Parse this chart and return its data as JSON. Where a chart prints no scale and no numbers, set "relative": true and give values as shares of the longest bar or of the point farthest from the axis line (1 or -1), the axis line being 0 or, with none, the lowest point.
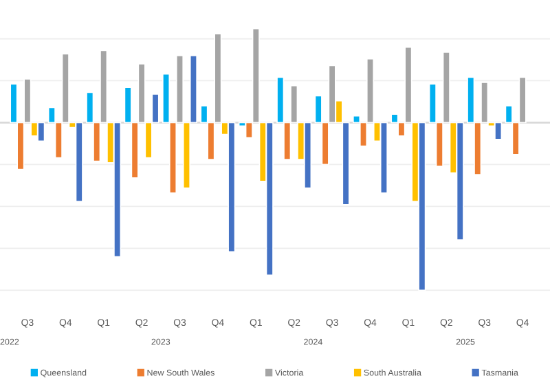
{
  "chart_data": {
    "type": "bar",
    "relative": true,
    "grid": "y",
    "legend": "bottom",
    "categories": [
      "Q3",
      "Q4",
      "Q1",
      "Q2",
      "Q3",
      "Q4",
      "Q1",
      "Q2",
      "Q3",
      "Q4",
      "Q1",
      "Q2",
      "Q3",
      "Q4"
    ],
    "annotations": [
      "2022",
      "2023",
      "2024",
      "2025"
    ],
    "series": [
      {
        "name": "Queensland",
        "color": "#00b0f0",
        "values": [
          0.23,
          0.09,
          0.18,
          0.21,
          0.29,
          0.1,
          -0.02,
          0.27,
          0.16,
          0.04,
          0.05,
          0.23,
          0.27,
          0.1
        ]
      },
      {
        "name": "New South Wales",
        "color": "#ed7d31",
        "values": [
          -0.28,
          -0.21,
          -0.23,
          -0.33,
          -0.42,
          -0.22,
          -0.09,
          -0.22,
          -0.25,
          -0.14,
          -0.08,
          -0.26,
          -0.31,
          -0.19
        ]
      },
      {
        "name": "Victoria",
        "color": "#a5a5a5",
        "values": [
          0.26,
          0.41,
          0.43,
          0.35,
          0.4,
          0.53,
          0.56,
          0.22,
          0.34,
          0.38,
          0.45,
          0.42,
          0.24,
          0.27
        ]
      },
      {
        "name": "South Australia",
        "color": "#ffc000",
        "values": [
          -0.08,
          -0.03,
          -0.24,
          -0.21,
          -0.39,
          -0.07,
          -0.35,
          -0.22,
          0.13,
          -0.11,
          -0.47,
          -0.3,
          -0.02,
          null
        ]
      },
      {
        "name": "Tasmania",
        "color": "#4472c4",
        "values": [
          -0.11,
          -0.47,
          -0.8,
          0.17,
          0.4,
          -0.77,
          -0.91,
          -0.39,
          -0.49,
          -0.42,
          -1,
          -0.7,
          -0.1,
          null
        ]
      }
    ]
  }
}
